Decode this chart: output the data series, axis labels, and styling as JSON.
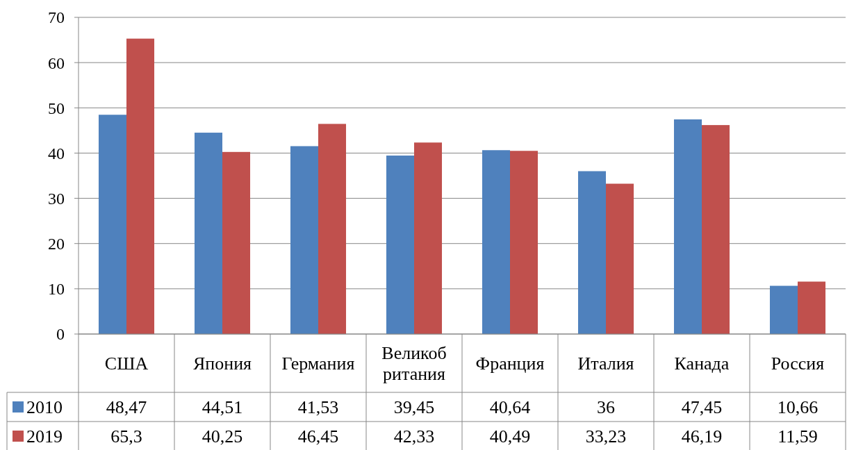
{
  "chart_data": {
    "type": "bar",
    "categories": [
      "США",
      "Япония",
      "Германия",
      "Великоб ритания",
      "Франция",
      "Италия",
      "Канада",
      "Россия"
    ],
    "series": [
      {
        "name": "2010",
        "color": "#4f81bd",
        "values": [
          48.47,
          44.51,
          41.53,
          39.45,
          40.64,
          36,
          47.45,
          10.66
        ],
        "value_labels": [
          "48,47",
          "44,51",
          "41,53",
          "39,45",
          "40,64",
          "36",
          "47,45",
          "10,66"
        ]
      },
      {
        "name": "2019",
        "color": "#c0504d",
        "values": [
          65.3,
          40.25,
          46.45,
          42.33,
          40.49,
          33.23,
          46.19,
          11.59
        ],
        "value_labels": [
          "65,3",
          "40,25",
          "46,45",
          "42,33",
          "40,49",
          "33,23",
          "46,19",
          "11,59"
        ]
      }
    ],
    "ylim": [
      0,
      70
    ],
    "yticks": [
      0,
      10,
      20,
      30,
      40,
      50,
      60,
      70
    ],
    "grid": "y",
    "legend": "bottom left"
  }
}
